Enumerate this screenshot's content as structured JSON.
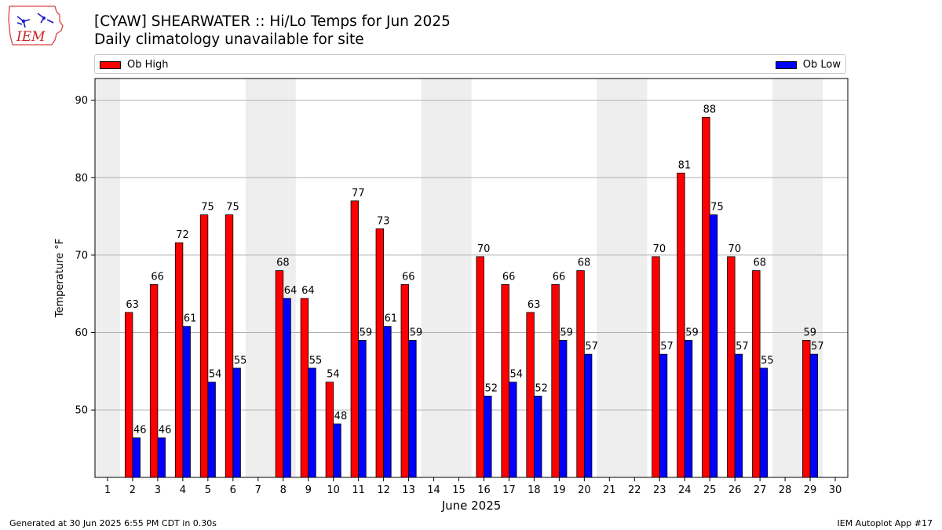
{
  "header": {
    "title_line1": "[CYAW] SHEARWATER :: Hi/Lo Temps for Jun 2025",
    "title_line2": "Daily climatology unavailable for site"
  },
  "logo": {
    "text": "IEM",
    "icon": "iem-iowa-logo"
  },
  "footer": {
    "left": "Generated at 30 Jun 2025 6:55 PM CDT in 0.30s",
    "right": "IEM Autoplot App #17"
  },
  "chart_data": {
    "type": "bar",
    "xlabel": "June 2025",
    "ylabel": "Temperature °F",
    "ylim": [
      41.3,
      92.8
    ],
    "xlim": [
      0.5,
      30.5
    ],
    "yticks": [
      50,
      60,
      70,
      80,
      90
    ],
    "categories": [
      "1",
      "2",
      "3",
      "4",
      "5",
      "6",
      "7",
      "8",
      "9",
      "10",
      "11",
      "12",
      "13",
      "14",
      "15",
      "16",
      "17",
      "18",
      "19",
      "20",
      "21",
      "22",
      "23",
      "24",
      "25",
      "26",
      "27",
      "28",
      "29",
      "30"
    ],
    "grid": "horizontal",
    "legend_placement": "top, above plot",
    "weekend_shading": [
      [
        1,
        1
      ],
      [
        7,
        8
      ],
      [
        14,
        15
      ],
      [
        21,
        22
      ],
      [
        28,
        29
      ]
    ],
    "series": [
      {
        "name": "Ob High",
        "color": "#ff0000",
        "values": [
          null,
          62.6,
          66.2,
          71.6,
          75.2,
          75.2,
          null,
          68.0,
          64.4,
          53.6,
          77.0,
          73.4,
          66.2,
          null,
          null,
          69.8,
          66.2,
          62.6,
          66.2,
          68.0,
          null,
          null,
          69.8,
          80.6,
          87.8,
          69.8,
          68.0,
          null,
          59.0,
          null
        ],
        "labels": [
          null,
          "63",
          "66",
          "72",
          "75",
          "75",
          null,
          "68",
          "64",
          "54",
          "77",
          "73",
          "66",
          null,
          null,
          "70",
          "66",
          "63",
          "66",
          "68",
          null,
          null,
          "70",
          "81",
          "88",
          "70",
          "68",
          null,
          "59",
          null
        ]
      },
      {
        "name": "Ob Low",
        "color": "#0000ff",
        "values": [
          null,
          46.4,
          46.4,
          60.8,
          53.6,
          55.4,
          null,
          64.4,
          55.4,
          48.2,
          59.0,
          60.8,
          59.0,
          null,
          null,
          51.8,
          53.6,
          51.8,
          59.0,
          57.2,
          null,
          null,
          57.2,
          59.0,
          75.2,
          57.2,
          55.4,
          null,
          57.2,
          null
        ],
        "labels": [
          null,
          "46",
          "46",
          "61",
          "54",
          "55",
          null,
          "64",
          "55",
          "48",
          "59",
          "61",
          "59",
          null,
          null,
          "52",
          "54",
          "52",
          "59",
          "57",
          null,
          null,
          "57",
          "59",
          "75",
          "57",
          "55",
          null,
          "57",
          null
        ]
      }
    ]
  }
}
